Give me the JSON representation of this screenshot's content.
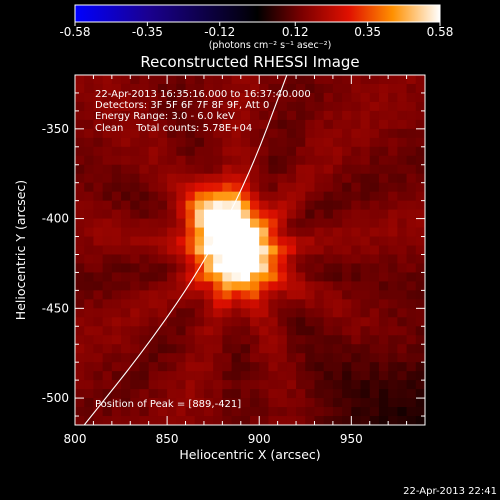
{
  "chart_data": {
    "type": "heatmap",
    "title": "Reconstructed RHESSI Image",
    "xlabel": "Heliocentric X (arcsec)",
    "ylabel": "Heliocentric Y (arcsec)",
    "x_range": [
      800,
      990
    ],
    "y_range": [
      -515,
      -320
    ],
    "x_ticks": [
      800,
      850,
      900,
      950
    ],
    "y_ticks": [
      -350,
      -400,
      -450,
      -500
    ],
    "colorbar": {
      "label": "(photons cm⁻² s⁻¹ asec⁻²)",
      "min": -0.58,
      "max": 0.58,
      "ticks": [
        "-0.58",
        "-0.35",
        "-0.12",
        "0.12",
        "0.35",
        "0.58"
      ],
      "colormap": "blue-black-red-yellow-white"
    },
    "annotations": [
      "22-Apr-2013 16:35:16.000 to 16:37:40.000",
      "Detectors: 3F 5F 6F 7F 8F 9F, Att 0",
      "Energy Range: 3.0 - 6.0 keV",
      "Clean    Total counts: 5.78E+04"
    ],
    "peak_label": "Position of Peak = [889,-421]",
    "peak": {
      "x": 889,
      "y": -421
    },
    "sources": [
      {
        "x": 889,
        "y": -421,
        "amplitude": 0.58,
        "width_arcsec": 15
      },
      {
        "x": 878,
        "y": -398,
        "amplitude": 0.42,
        "width_arcsec": 12
      }
    ],
    "limb_curve": [
      [
        805,
        -515
      ],
      [
        840,
        -470
      ],
      [
        870,
        -425
      ],
      [
        895,
        -375
      ],
      [
        915,
        -320
      ]
    ],
    "timestamp": "22-Apr-2013 22:41"
  }
}
